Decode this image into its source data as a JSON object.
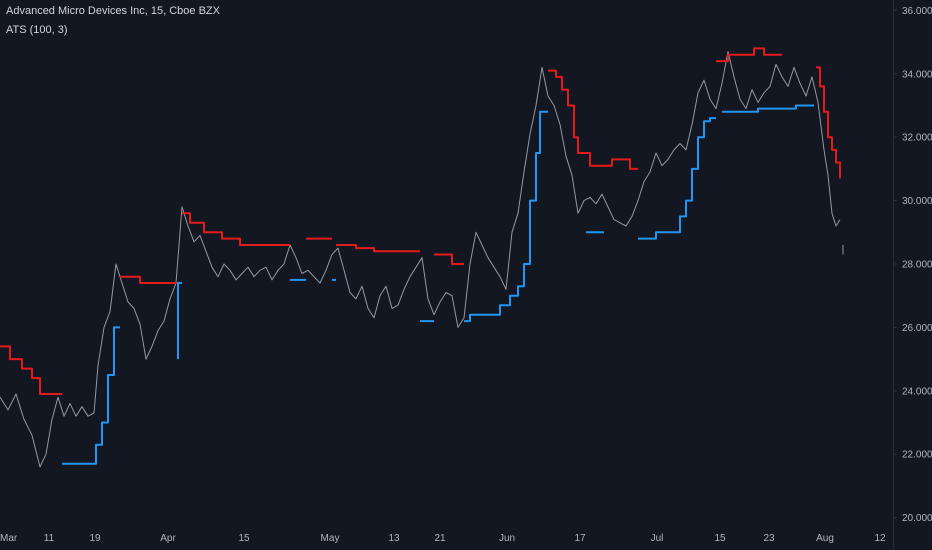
{
  "legend": {
    "title": "Advanced Micro Devices Inc, 15, Cboe BZX",
    "indicator": "ATS (100, 3)"
  },
  "colors": {
    "background": "#131722",
    "price_line": "#9598a1",
    "ats_up": "#2196f3",
    "ats_down": "#e51b1b",
    "axis_text": "#b2b5be",
    "axis_border": "#2a2e39"
  },
  "chart_data": {
    "type": "line",
    "title": "Advanced Micro Devices Inc, 15, Cboe BZX",
    "ylim": [
      19.8,
      36.2
    ],
    "y_ticks": [
      36,
      34,
      32,
      30,
      28,
      26,
      24,
      22,
      20
    ],
    "y_tick_labels": [
      "36.0000",
      "34.0000",
      "32.0000",
      "30.0000",
      "28.0000",
      "26.0000",
      "24.0000",
      "22.0000",
      "20.0000"
    ],
    "x_ticks": [
      {
        "label": "Mar",
        "t": 0
      },
      {
        "label": "11",
        "t": 49
      },
      {
        "label": "19",
        "t": 95
      },
      {
        "label": "Apr",
        "t": 168
      },
      {
        "label": "15",
        "t": 244
      },
      {
        "label": "May",
        "t": 330
      },
      {
        "label": "13",
        "t": 394
      },
      {
        "label": "21",
        "t": 440
      },
      {
        "label": "Jun",
        "t": 507
      },
      {
        "label": "17",
        "t": 580
      },
      {
        "label": "Jul",
        "t": 657
      },
      {
        "label": "15",
        "t": 720
      },
      {
        "label": "23",
        "t": 769
      },
      {
        "label": "Aug",
        "t": 825
      },
      {
        "label": "12",
        "t": 880
      }
    ],
    "series": [
      {
        "key": "price",
        "points": [
          [
            0,
            23.8
          ],
          [
            8,
            23.4
          ],
          [
            16,
            23.9
          ],
          [
            24,
            23.1
          ],
          [
            32,
            22.6
          ],
          [
            40,
            21.6
          ],
          [
            46,
            22.0
          ],
          [
            52,
            23.1
          ],
          [
            58,
            23.8
          ],
          [
            64,
            23.2
          ],
          [
            70,
            23.6
          ],
          [
            76,
            23.2
          ],
          [
            82,
            23.5
          ],
          [
            88,
            23.2
          ],
          [
            94,
            23.3
          ],
          [
            98,
            24.8
          ],
          [
            104,
            26.0
          ],
          [
            110,
            26.5
          ],
          [
            116,
            28.0
          ],
          [
            122,
            27.4
          ],
          [
            128,
            26.8
          ],
          [
            134,
            26.6
          ],
          [
            140,
            26.1
          ],
          [
            146,
            25.0
          ],
          [
            152,
            25.4
          ],
          [
            158,
            25.9
          ],
          [
            164,
            26.2
          ],
          [
            170,
            26.9
          ],
          [
            176,
            27.4
          ],
          [
            182,
            29.8
          ],
          [
            188,
            29.2
          ],
          [
            194,
            28.7
          ],
          [
            200,
            28.9
          ],
          [
            206,
            28.4
          ],
          [
            212,
            27.9
          ],
          [
            218,
            27.6
          ],
          [
            224,
            28.0
          ],
          [
            230,
            27.8
          ],
          [
            236,
            27.5
          ],
          [
            242,
            27.7
          ],
          [
            248,
            27.9
          ],
          [
            254,
            27.6
          ],
          [
            260,
            27.8
          ],
          [
            266,
            27.9
          ],
          [
            272,
            27.5
          ],
          [
            278,
            27.8
          ],
          [
            284,
            28.0
          ],
          [
            290,
            28.6
          ],
          [
            296,
            28.2
          ],
          [
            302,
            27.7
          ],
          [
            308,
            27.8
          ],
          [
            314,
            27.6
          ],
          [
            320,
            27.4
          ],
          [
            326,
            27.8
          ],
          [
            332,
            28.3
          ],
          [
            338,
            28.5
          ],
          [
            344,
            27.8
          ],
          [
            350,
            27.1
          ],
          [
            356,
            26.9
          ],
          [
            362,
            27.3
          ],
          [
            368,
            26.6
          ],
          [
            374,
            26.3
          ],
          [
            380,
            27.0
          ],
          [
            386,
            27.3
          ],
          [
            392,
            26.6
          ],
          [
            398,
            26.7
          ],
          [
            404,
            27.2
          ],
          [
            410,
            27.6
          ],
          [
            416,
            27.9
          ],
          [
            422,
            28.2
          ],
          [
            428,
            26.9
          ],
          [
            434,
            26.4
          ],
          [
            440,
            26.8
          ],
          [
            446,
            27.1
          ],
          [
            452,
            27.0
          ],
          [
            458,
            26.0
          ],
          [
            464,
            26.3
          ],
          [
            470,
            28.0
          ],
          [
            476,
            29.0
          ],
          [
            482,
            28.6
          ],
          [
            488,
            28.2
          ],
          [
            494,
            27.9
          ],
          [
            500,
            27.6
          ],
          [
            506,
            27.2
          ],
          [
            512,
            29.0
          ],
          [
            518,
            29.6
          ],
          [
            524,
            30.9
          ],
          [
            530,
            32.1
          ],
          [
            536,
            33.0
          ],
          [
            542,
            34.2
          ],
          [
            548,
            33.3
          ],
          [
            554,
            33.0
          ],
          [
            560,
            32.4
          ],
          [
            566,
            31.4
          ],
          [
            572,
            30.8
          ],
          [
            578,
            29.6
          ],
          [
            584,
            30.0
          ],
          [
            590,
            30.1
          ],
          [
            596,
            29.9
          ],
          [
            602,
            30.2
          ],
          [
            608,
            29.8
          ],
          [
            614,
            29.4
          ],
          [
            620,
            29.3
          ],
          [
            626,
            29.2
          ],
          [
            632,
            29.5
          ],
          [
            638,
            30.0
          ],
          [
            644,
            30.6
          ],
          [
            650,
            30.9
          ],
          [
            656,
            31.5
          ],
          [
            662,
            31.1
          ],
          [
            668,
            31.3
          ],
          [
            674,
            31.6
          ],
          [
            680,
            31.8
          ],
          [
            686,
            31.6
          ],
          [
            692,
            32.4
          ],
          [
            698,
            33.4
          ],
          [
            704,
            33.8
          ],
          [
            710,
            33.2
          ],
          [
            716,
            32.9
          ],
          [
            722,
            33.7
          ],
          [
            728,
            34.7
          ],
          [
            734,
            33.9
          ],
          [
            740,
            33.2
          ],
          [
            746,
            32.9
          ],
          [
            752,
            33.5
          ],
          [
            758,
            33.1
          ],
          [
            764,
            33.4
          ],
          [
            770,
            33.6
          ],
          [
            776,
            34.3
          ],
          [
            782,
            33.9
          ],
          [
            788,
            33.6
          ],
          [
            794,
            34.2
          ],
          [
            800,
            33.7
          ],
          [
            806,
            33.3
          ],
          [
            812,
            33.9
          ],
          [
            818,
            33.1
          ],
          [
            824,
            31.6
          ],
          [
            828,
            30.8
          ],
          [
            832,
            29.6
          ],
          [
            836,
            29.2
          ],
          [
            840,
            29.4
          ]
        ]
      },
      {
        "key": "price_tick",
        "points": [
          [
            843,
            28.6
          ],
          [
            843,
            28.3
          ]
        ]
      },
      {
        "key": "ats_bear_1",
        "points": [
          [
            0,
            25.4
          ],
          [
            10,
            25.4
          ],
          [
            10,
            25.0
          ],
          [
            22,
            25.0
          ],
          [
            22,
            24.7
          ],
          [
            32,
            24.7
          ],
          [
            32,
            24.4
          ],
          [
            40,
            24.4
          ],
          [
            40,
            23.9
          ],
          [
            62,
            23.9
          ]
        ]
      },
      {
        "key": "ats_bull_1",
        "points": [
          [
            62,
            21.7
          ],
          [
            96,
            21.7
          ],
          [
            96,
            22.3
          ],
          [
            102,
            22.3
          ],
          [
            102,
            23.0
          ],
          [
            108,
            23.0
          ],
          [
            108,
            24.5
          ],
          [
            114,
            24.5
          ],
          [
            114,
            26.0
          ],
          [
            120,
            26.0
          ]
        ]
      },
      {
        "key": "ats_bear_2",
        "points": [
          [
            120,
            27.6
          ],
          [
            140,
            27.6
          ],
          [
            140,
            27.4
          ],
          [
            178,
            27.4
          ]
        ]
      },
      {
        "key": "ats_bull_2",
        "points": [
          [
            178,
            25.0
          ],
          [
            178,
            27.4
          ],
          [
            182,
            27.4
          ]
        ]
      },
      {
        "key": "ats_bear_3",
        "points": [
          [
            182,
            29.6
          ],
          [
            190,
            29.6
          ],
          [
            190,
            29.3
          ],
          [
            204,
            29.3
          ],
          [
            204,
            29.0
          ],
          [
            222,
            29.0
          ],
          [
            222,
            28.8
          ],
          [
            240,
            28.8
          ],
          [
            240,
            28.6
          ],
          [
            290,
            28.6
          ]
        ]
      },
      {
        "key": "ats_bull_3",
        "points": [
          [
            290,
            27.5
          ],
          [
            306,
            27.5
          ]
        ]
      },
      {
        "key": "ats_bear_4",
        "points": [
          [
            306,
            28.8
          ],
          [
            332,
            28.8
          ]
        ]
      },
      {
        "key": "ats_bull_4",
        "points": [
          [
            332,
            27.5
          ],
          [
            336,
            27.5
          ]
        ]
      },
      {
        "key": "ats_bear_5",
        "points": [
          [
            336,
            28.6
          ],
          [
            356,
            28.6
          ],
          [
            356,
            28.5
          ],
          [
            374,
            28.5
          ],
          [
            374,
            28.4
          ],
          [
            420,
            28.4
          ]
        ]
      },
      {
        "key": "ats_bull_5",
        "points": [
          [
            420,
            26.2
          ],
          [
            434,
            26.2
          ]
        ]
      },
      {
        "key": "ats_bear_6",
        "points": [
          [
            434,
            28.3
          ],
          [
            452,
            28.3
          ],
          [
            452,
            28.0
          ],
          [
            464,
            28.0
          ]
        ]
      },
      {
        "key": "ats_bull_6",
        "points": [
          [
            464,
            26.2
          ],
          [
            470,
            26.2
          ],
          [
            470,
            26.4
          ],
          [
            500,
            26.4
          ],
          [
            500,
            26.7
          ],
          [
            510,
            26.7
          ],
          [
            510,
            27.0
          ],
          [
            518,
            27.0
          ],
          [
            518,
            27.3
          ],
          [
            524,
            27.3
          ],
          [
            524,
            28.0
          ],
          [
            530,
            28.0
          ],
          [
            530,
            30.0
          ],
          [
            536,
            30.0
          ],
          [
            536,
            31.5
          ],
          [
            540,
            31.5
          ],
          [
            540,
            32.8
          ],
          [
            548,
            32.8
          ]
        ]
      },
      {
        "key": "ats_bear_7",
        "points": [
          [
            548,
            34.1
          ],
          [
            556,
            34.1
          ],
          [
            556,
            33.9
          ],
          [
            562,
            33.9
          ],
          [
            562,
            33.5
          ],
          [
            568,
            33.5
          ],
          [
            568,
            33.0
          ],
          [
            574,
            33.0
          ],
          [
            574,
            32.0
          ],
          [
            578,
            32.0
          ],
          [
            578,
            31.5
          ],
          [
            590,
            31.5
          ],
          [
            590,
            31.1
          ],
          [
            604,
            31.1
          ]
        ]
      },
      {
        "key": "ats_bull_7",
        "points": [
          [
            586,
            29.0
          ],
          [
            604,
            29.0
          ]
        ]
      },
      {
        "key": "ats_bear_8",
        "points": [
          [
            604,
            31.1
          ],
          [
            612,
            31.1
          ],
          [
            612,
            31.3
          ],
          [
            630,
            31.3
          ],
          [
            630,
            31.0
          ],
          [
            638,
            31.0
          ]
        ]
      },
      {
        "key": "ats_bull_8",
        "points": [
          [
            638,
            28.8
          ],
          [
            656,
            28.8
          ],
          [
            656,
            29.0
          ],
          [
            680,
            29.0
          ],
          [
            680,
            29.5
          ],
          [
            686,
            29.5
          ],
          [
            686,
            30.0
          ],
          [
            692,
            30.0
          ],
          [
            692,
            31.0
          ],
          [
            698,
            31.0
          ],
          [
            698,
            32.0
          ],
          [
            704,
            32.0
          ],
          [
            704,
            32.5
          ],
          [
            710,
            32.5
          ],
          [
            710,
            32.6
          ],
          [
            716,
            32.6
          ]
        ]
      },
      {
        "key": "ats_bear_9",
        "points": [
          [
            716,
            34.4
          ],
          [
            728,
            34.4
          ],
          [
            728,
            34.6
          ],
          [
            754,
            34.6
          ],
          [
            754,
            34.8
          ],
          [
            764,
            34.8
          ],
          [
            764,
            34.6
          ],
          [
            782,
            34.6
          ]
        ]
      },
      {
        "key": "ats_bull_9",
        "points": [
          [
            722,
            32.8
          ],
          [
            758,
            32.8
          ],
          [
            758,
            32.9
          ],
          [
            796,
            32.9
          ],
          [
            796,
            33.0
          ],
          [
            814,
            33.0
          ]
        ]
      },
      {
        "key": "ats_bear_10",
        "points": [
          [
            816,
            34.2
          ],
          [
            820,
            34.2
          ],
          [
            820,
            33.6
          ],
          [
            824,
            33.6
          ],
          [
            824,
            32.8
          ],
          [
            828,
            32.8
          ],
          [
            828,
            32.0
          ],
          [
            832,
            32.0
          ],
          [
            832,
            31.6
          ],
          [
            836,
            31.6
          ],
          [
            836,
            31.2
          ],
          [
            840,
            31.2
          ],
          [
            840,
            30.7
          ]
        ]
      }
    ]
  }
}
